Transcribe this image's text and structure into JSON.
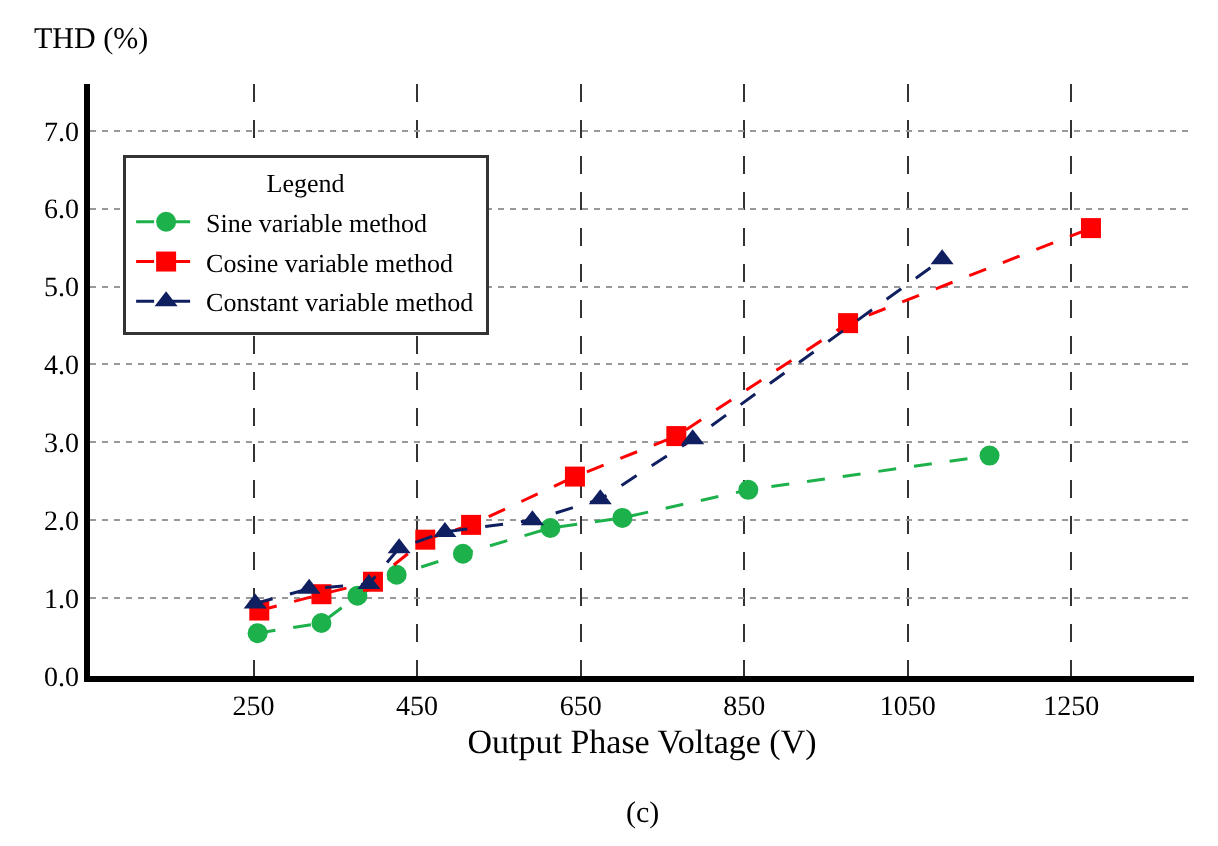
{
  "chart_data": {
    "type": "line",
    "xlabel": "Output Phase Voltage (V)",
    "ylabel": "THD (%)",
    "legend_title": "Legend",
    "legend": "top left",
    "grid": true,
    "line_style": "dashed",
    "xlim": [
      50,
      1400
    ],
    "xticks": [
      250,
      450,
      650,
      850,
      1050,
      1250
    ],
    "ylim": [
      0,
      7.6
    ],
    "yticks": [
      {
        "value": 0,
        "label": "0.0"
      },
      {
        "value": 1,
        "label": "1.0"
      },
      {
        "value": 2,
        "label": "2.0"
      },
      {
        "value": 3,
        "label": "3.0"
      },
      {
        "value": 4,
        "label": "4.0"
      },
      {
        "value": 5,
        "label": "5.0"
      },
      {
        "value": 6,
        "label": "6.0"
      },
      {
        "value": 7,
        "label": "7.0"
      }
    ],
    "annotations": [
      "(c)"
    ],
    "series": [
      {
        "name": "Sine variable method",
        "color": "#1db14b",
        "marker": "circle",
        "x": [
          255,
          333,
          377,
          425,
          506,
          613,
          701,
          855,
          1150
        ],
        "values": [
          0.55,
          0.68,
          1.03,
          1.3,
          1.57,
          1.9,
          2.03,
          2.39,
          2.83
        ]
      },
      {
        "name": "Cosine variable method",
        "color": "#ff0000",
        "marker": "square",
        "x": [
          257,
          333,
          396,
          460,
          516,
          643,
          767,
          977,
          1274
        ],
        "values": [
          0.84,
          1.05,
          1.21,
          1.75,
          1.94,
          2.56,
          3.08,
          4.53,
          5.75
        ]
      },
      {
        "name": "Constant variable method",
        "color": "#0f1f5f",
        "marker": "triangle",
        "x": [
          252,
          318,
          391,
          428,
          484,
          591,
          674,
          787,
          1092
        ],
        "values": [
          0.93,
          1.12,
          1.18,
          1.64,
          1.85,
          2.0,
          2.27,
          3.04,
          5.35
        ]
      }
    ]
  }
}
